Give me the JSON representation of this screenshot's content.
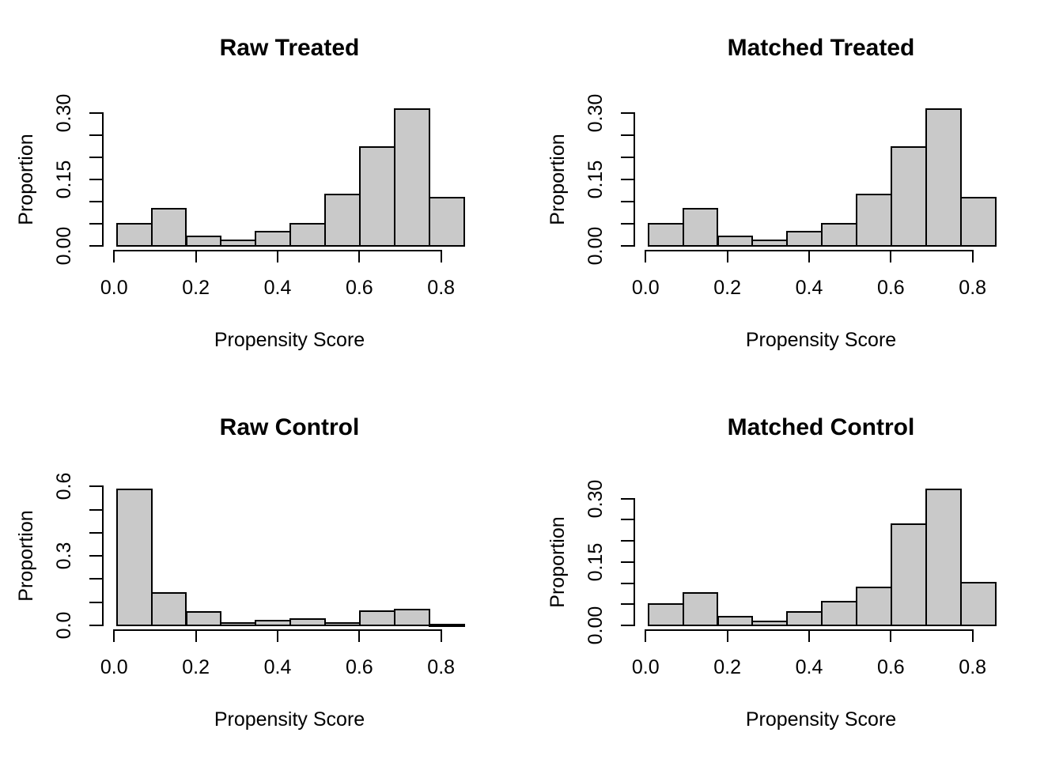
{
  "figure": {
    "background_color": "#ffffff",
    "bar_fill_color": "#c9c9c9",
    "line_color": "#000000"
  },
  "chart_data": [
    {
      "type": "bar",
      "panel": "top-left",
      "title": "Raw Treated",
      "xlabel": "Propensity Score",
      "ylabel": "Proportion",
      "bin_start": 0.006,
      "bin_width": 0.085,
      "values": [
        0.05,
        0.083,
        0.021,
        0.012,
        0.032,
        0.05,
        0.115,
        0.223,
        0.309,
        0.108
      ],
      "x_tick_values": [
        0.0,
        0.2,
        0.4,
        0.6,
        0.8
      ],
      "x_tick_labels": [
        "0.0",
        "0.2",
        "0.4",
        "0.6",
        "0.8"
      ],
      "y_tick_max": 0.3,
      "y_tick_step": 0.05,
      "y_tick_labels": [
        "0.00",
        "0.15",
        "0.30"
      ],
      "y_labeled_tick_indices": [
        0,
        3,
        6
      ],
      "ylim": [
        0,
        0.322
      ],
      "xlim": [
        -0.028,
        0.89
      ],
      "grid": false,
      "legend": "none"
    },
    {
      "type": "bar",
      "panel": "top-right",
      "title": "Matched Treated",
      "xlabel": "Propensity Score",
      "ylabel": "Proportion",
      "bin_start": 0.006,
      "bin_width": 0.085,
      "values": [
        0.05,
        0.083,
        0.021,
        0.012,
        0.032,
        0.05,
        0.115,
        0.223,
        0.309,
        0.108
      ],
      "x_tick_values": [
        0.0,
        0.2,
        0.4,
        0.6,
        0.8
      ],
      "x_tick_labels": [
        "0.0",
        "0.2",
        "0.4",
        "0.6",
        "0.8"
      ],
      "y_tick_max": 0.3,
      "y_tick_step": 0.05,
      "y_tick_labels": [
        "0.00",
        "0.15",
        "0.30"
      ],
      "y_labeled_tick_indices": [
        0,
        3,
        6
      ],
      "ylim": [
        0,
        0.322
      ],
      "xlim": [
        -0.028,
        0.89
      ],
      "grid": false,
      "legend": "none"
    },
    {
      "type": "bar",
      "panel": "bottom-left",
      "title": "Raw Control",
      "xlabel": "Propensity Score",
      "ylabel": "Proportion",
      "bin_start": 0.006,
      "bin_width": 0.085,
      "values": [
        0.586,
        0.14,
        0.058,
        0.009,
        0.019,
        0.028,
        0.011,
        0.061,
        0.067,
        0.003
      ],
      "x_tick_values": [
        0.0,
        0.2,
        0.4,
        0.6,
        0.8
      ],
      "x_tick_labels": [
        "0.0",
        "0.2",
        "0.4",
        "0.6",
        "0.8"
      ],
      "y_tick_max": 0.6,
      "y_tick_step": 0.1,
      "y_tick_labels": [
        "0.0",
        "0.3",
        "0.6"
      ],
      "y_labeled_tick_indices": [
        0,
        3,
        6
      ],
      "ylim": [
        0,
        0.615
      ],
      "xlim": [
        -0.028,
        0.89
      ],
      "grid": false,
      "legend": "none"
    },
    {
      "type": "bar",
      "panel": "bottom-right",
      "title": "Matched Control",
      "xlabel": "Propensity Score",
      "ylabel": "Proportion",
      "bin_start": 0.006,
      "bin_width": 0.085,
      "values": [
        0.051,
        0.077,
        0.021,
        0.009,
        0.032,
        0.057,
        0.089,
        0.24,
        0.322,
        0.101
      ],
      "x_tick_values": [
        0.0,
        0.2,
        0.4,
        0.6,
        0.8
      ],
      "x_tick_labels": [
        "0.0",
        "0.2",
        "0.4",
        "0.6",
        "0.8"
      ],
      "y_tick_max": 0.3,
      "y_tick_step": 0.05,
      "y_tick_labels": [
        "0.00",
        "0.15",
        "0.30"
      ],
      "y_labeled_tick_indices": [
        0,
        3,
        6
      ],
      "ylim": [
        0,
        0.337
      ],
      "xlim": [
        -0.028,
        0.89
      ],
      "grid": false,
      "legend": "none"
    }
  ]
}
